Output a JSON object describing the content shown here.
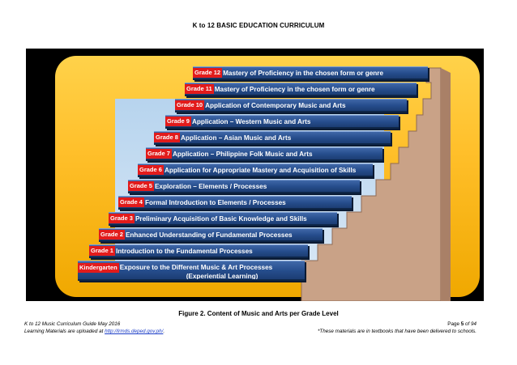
{
  "document": {
    "title": "K to 12 BASIC EDUCATION CURRICULUM",
    "figure_caption": "Figure 2.   Content of Music and Arts per Grade Level"
  },
  "steps": [
    {
      "tag": "Kindergarten",
      "line1": "Exposure to the Different Music & Art Processes",
      "line2": "(Experiential Learning)"
    },
    {
      "tag": "Grade 1",
      "text": "Introduction to the Fundamental Processes"
    },
    {
      "tag": "Grade 2",
      "text": "Enhanced Understanding of Fundamental Processes"
    },
    {
      "tag": "Grade 3",
      "text": "Preliminary Acquisition of Basic Knowledge and Skills"
    },
    {
      "tag": "Grade 4",
      "text": "Formal Introduction to Elements / Processes"
    },
    {
      "tag": "Grade 5",
      "text": "Exploration – Elements / Processes"
    },
    {
      "tag": "Grade 6",
      "text": "Application for Appropriate Mastery and Acquisition of Skills"
    },
    {
      "tag": "Grade 7",
      "text": "Application – Philippine Folk Music and Arts"
    },
    {
      "tag": "Grade 8",
      "text": "Application – Asian Music and Arts"
    },
    {
      "tag": "Grade 9",
      "text": "Application – Western Music and Arts"
    },
    {
      "tag": "Grade 10",
      "text": "Application of Contemporary Music and Arts"
    },
    {
      "tag": "Grade 11",
      "text": "Mastery of Proficiency in the chosen form or genre"
    },
    {
      "tag": "Grade 12",
      "text": "Mastery of Proficiency in the chosen form or genre"
    }
  ],
  "footer": {
    "guide": "K to 12 Music Curriculum Guide May 2016",
    "uploaded_prefix": "Learning Materials are uploaded at ",
    "url": "http://lrmds.deped.gov.ph/",
    "uploaded_suffix": ".",
    "page_word": "Page ",
    "page_number": "5",
    "page_of": " of 94",
    "note": "*These materials are in textbooks that have been delivered to schools."
  },
  "colors": {
    "step_blue": "#254c8b",
    "grade_tag_red": "#e21b1b",
    "background_yellow": "#ffc43a",
    "sky_blue": "#c6dcf1",
    "wall_brown": "#c9a287"
  }
}
